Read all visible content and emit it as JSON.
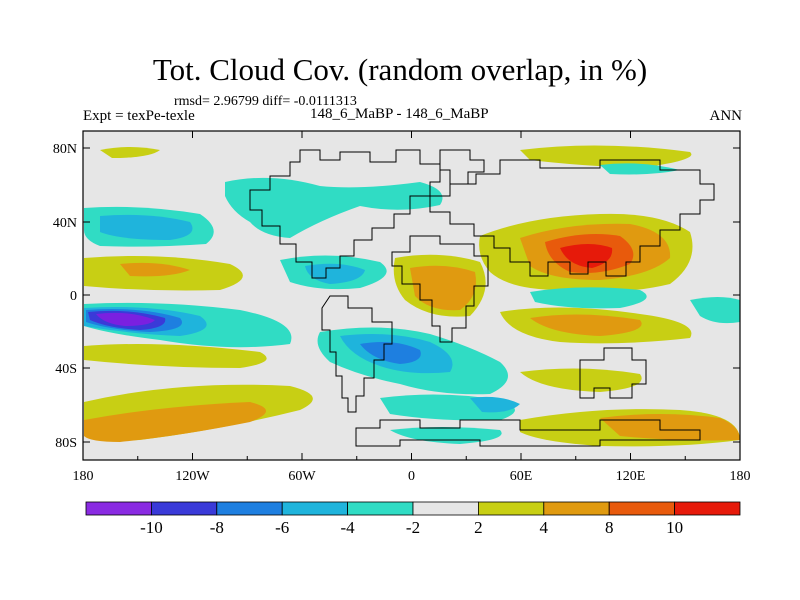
{
  "title": "Tot. Cloud Cov. (random overlap, in %)",
  "stats": "rmsd= 2.96799  diff= -0.0111313",
  "expt_label": "Expt = texPe-texle",
  "case_label": "148_6_MaBP - 148_6_MaBP",
  "season": "ANN",
  "axes": {
    "x_ticks": [
      "180",
      "120W",
      "60W",
      "0",
      "60E",
      "120E",
      "180"
    ],
    "y_ticks": [
      "80N",
      "40N",
      "0",
      "40S",
      "80S"
    ]
  },
  "colorbar": {
    "labels": [
      "-10",
      "-8",
      "-6",
      "-4",
      "-2",
      "2",
      "4",
      "8",
      "10"
    ],
    "colors": [
      "#8a2be2",
      "#3a3ad8",
      "#1e7fe0",
      "#1fb4dc",
      "#30dcc4",
      "#e6e6e6",
      "#c8cf14",
      "#e09a10",
      "#e85a0c",
      "#e61a0a"
    ]
  },
  "field_colors": {
    "neg_strong": "#7a20e0",
    "neg_med": "#3a3ad8",
    "neg": "#1e7fe0",
    "neg_light": "#1fb4dc",
    "neg_weak": "#30dcc4",
    "neutral": "#e6e6e6",
    "pos_weak": "#c8cf14",
    "pos": "#e09a10",
    "pos_med": "#e85a0c",
    "pos_strong": "#e61a0a"
  }
}
